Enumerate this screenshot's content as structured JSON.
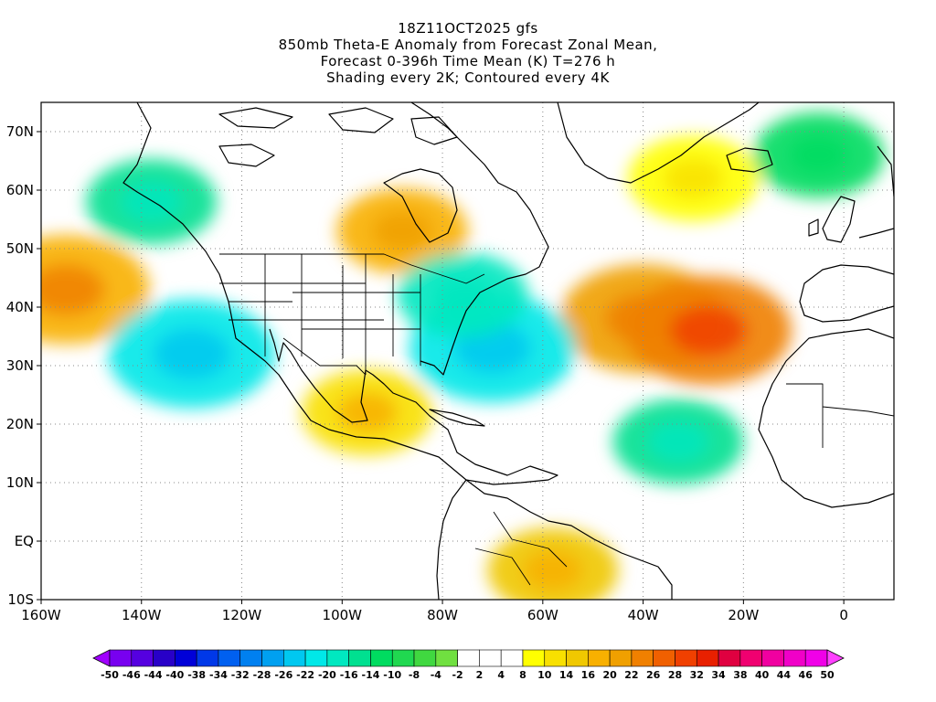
{
  "titles": {
    "line1": "18Z11OCT2025 gfs",
    "line2": "850mb Theta-E Anomaly from Forecast Zonal Mean,",
    "line3": "Forecast 0-396h Time Mean (K) T=276 h",
    "line4": "Shading every 2K; Contoured every 4K"
  },
  "chart_data": {
    "type": "heatmap",
    "projection": "lat-lon",
    "xlim": [
      -160,
      10
    ],
    "ylim": [
      -10,
      75
    ],
    "x_ticks": [
      {
        "value": -160,
        "label": "160W"
      },
      {
        "value": -140,
        "label": "140W"
      },
      {
        "value": -120,
        "label": "120W"
      },
      {
        "value": -100,
        "label": "100W"
      },
      {
        "value": -80,
        "label": "80W"
      },
      {
        "value": -60,
        "label": "60W"
      },
      {
        "value": -40,
        "label": "40W"
      },
      {
        "value": -20,
        "label": "20W"
      },
      {
        "value": 0,
        "label": "0"
      }
    ],
    "y_ticks": [
      {
        "value": 70,
        "label": "70N"
      },
      {
        "value": 60,
        "label": "60N"
      },
      {
        "value": 50,
        "label": "50N"
      },
      {
        "value": 40,
        "label": "40N"
      },
      {
        "value": 30,
        "label": "30N"
      },
      {
        "value": 20,
        "label": "20N"
      },
      {
        "value": 10,
        "label": "10N"
      },
      {
        "value": 0,
        "label": "EQ"
      },
      {
        "value": -10,
        "label": "10S"
      }
    ],
    "grid": "dotted",
    "colorbar": {
      "colors": [
        "#a000ff",
        "#7800f0",
        "#5500e0",
        "#2800c8",
        "#0000d8",
        "#0038e8",
        "#0060f0",
        "#0080f0",
        "#00a0f0",
        "#00c8f0",
        "#00e8e8",
        "#00e8c0",
        "#00e090",
        "#00dc60",
        "#20d850",
        "#40d840",
        "#70e040",
        "#ffffff",
        "#ffffff",
        "#ffffff",
        "#ffff00",
        "#f8e000",
        "#f0c800",
        "#f8b000",
        "#f0a000",
        "#f08000",
        "#f06000",
        "#f04000",
        "#e82000",
        "#e00040",
        "#f00070",
        "#f000a0",
        "#f000c8",
        "#f000e8",
        "#ff40ff"
      ],
      "labels": [
        "-50",
        "-46",
        "-44",
        "-40",
        "-38",
        "-34",
        "-32",
        "-28",
        "-26",
        "-22",
        "-20",
        "-16",
        "-14",
        "-10",
        "-8",
        "-4",
        "-2",
        "2",
        "4",
        "8",
        "10",
        "14",
        "16",
        "20",
        "22",
        "26",
        "28",
        "32",
        "34",
        "38",
        "40",
        "44",
        "46",
        "50"
      ]
    },
    "anomaly_regions": [
      {
        "name": "Gulf Stream / W Atlantic warm tongue",
        "lon": -40,
        "lat": 38,
        "value": 22
      },
      {
        "name": "Mid-Atlantic warm core",
        "lon": -27,
        "lat": 36,
        "value": 26
      },
      {
        "name": "NE Pacific warm patch",
        "lon": -155,
        "lat": 43,
        "value": 20
      },
      {
        "name": "Hudson Bay warm plume",
        "lon": -88,
        "lat": 53,
        "value": 18
      },
      {
        "name": "Tropical South America",
        "lon": -58,
        "lat": -5,
        "value": 16
      },
      {
        "name": "Mexico / Gulf warm",
        "lon": -95,
        "lat": 22,
        "value": 14
      },
      {
        "name": "Greenland Sea / Iceland",
        "lon": -30,
        "lat": 62,
        "value": 10
      },
      {
        "name": "NE Pacific cold pool",
        "lon": -130,
        "lat": 32,
        "value": -20
      },
      {
        "name": "Offshore US East Coast cold",
        "lon": -70,
        "lat": 33,
        "value": -20
      },
      {
        "name": "Great Lakes / Mid-Atlantic cold",
        "lon": -76,
        "lat": 42,
        "value": -16
      },
      {
        "name": "Western Canada / Alaska cold",
        "lon": -138,
        "lat": 58,
        "value": -14
      },
      {
        "name": "E Atlantic cold (Cape Verde)",
        "lon": -33,
        "lat": 17,
        "value": -14
      },
      {
        "name": "Norwegian Sea cold",
        "lon": -5,
        "lat": 66,
        "value": -12
      }
    ]
  }
}
